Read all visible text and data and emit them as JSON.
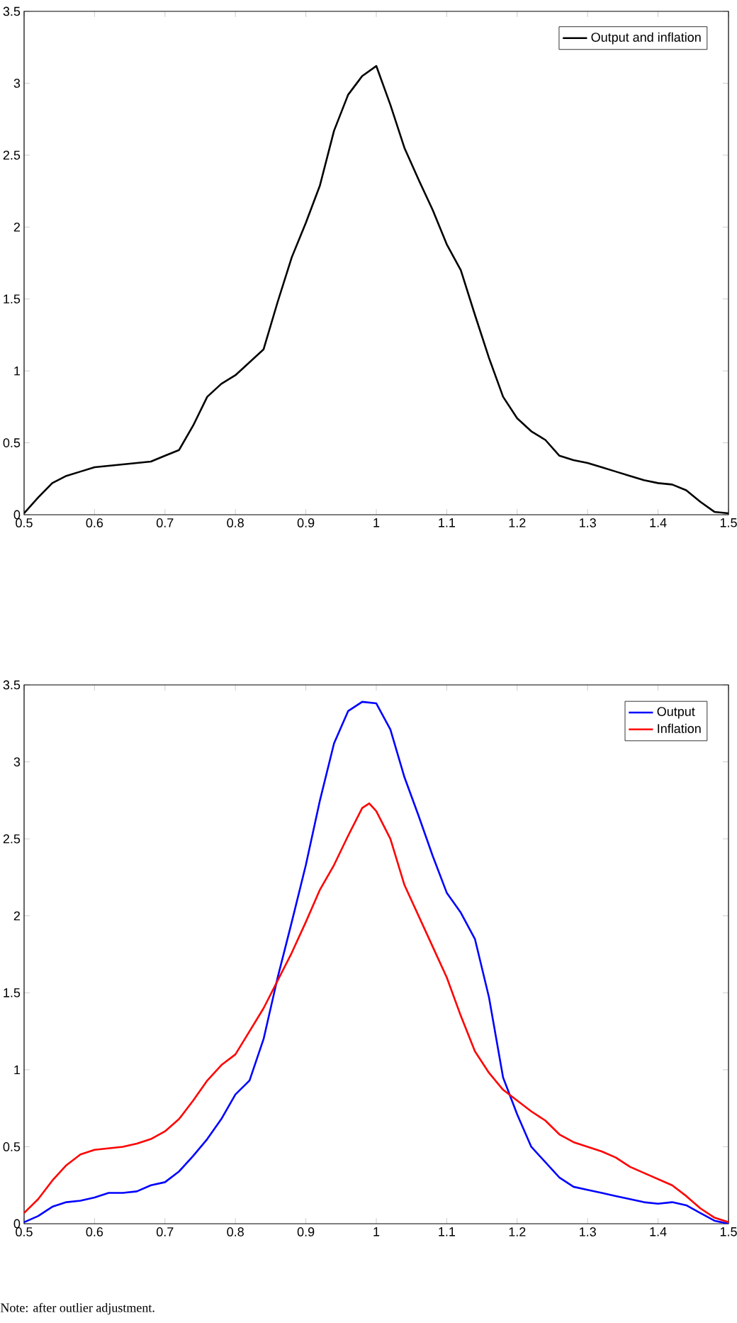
{
  "chart_data": [
    {
      "type": "line",
      "series": [
        {
          "name": "Output and inflation",
          "color": "#000000",
          "x": [
            0.5,
            0.52,
            0.54,
            0.56,
            0.58,
            0.6,
            0.62,
            0.64,
            0.66,
            0.68,
            0.7,
            0.72,
            0.74,
            0.76,
            0.78,
            0.8,
            0.82,
            0.84,
            0.86,
            0.88,
            0.9,
            0.92,
            0.94,
            0.96,
            0.98,
            1.0,
            1.02,
            1.04,
            1.06,
            1.08,
            1.1,
            1.12,
            1.14,
            1.16,
            1.18,
            1.2,
            1.22,
            1.24,
            1.26,
            1.28,
            1.3,
            1.32,
            1.34,
            1.36,
            1.38,
            1.4,
            1.42,
            1.44,
            1.46,
            1.48,
            1.5
          ],
          "values": [
            0.01,
            0.12,
            0.22,
            0.27,
            0.3,
            0.33,
            0.34,
            0.35,
            0.36,
            0.37,
            0.41,
            0.45,
            0.62,
            0.82,
            0.91,
            0.97,
            1.06,
            1.15,
            1.48,
            1.79,
            2.03,
            2.29,
            2.67,
            2.92,
            3.05,
            3.12,
            2.85,
            2.55,
            2.33,
            2.12,
            1.88,
            1.7,
            1.39,
            1.09,
            0.82,
            0.67,
            0.58,
            0.52,
            0.41,
            0.38,
            0.36,
            0.33,
            0.3,
            0.27,
            0.24,
            0.22,
            0.21,
            0.17,
            0.09,
            0.02,
            0.01
          ]
        }
      ],
      "xlim": [
        0.5,
        1.5
      ],
      "ylim": [
        0,
        3.5
      ],
      "xticks": [
        0.5,
        0.6,
        0.7,
        0.8,
        0.9,
        1,
        1.1,
        1.2,
        1.3,
        1.4,
        1.5
      ],
      "yticks": [
        0,
        0.5,
        1,
        1.5,
        2,
        2.5,
        3,
        3.5
      ],
      "legend": "top right",
      "marker": "none",
      "line_style": "solid"
    },
    {
      "type": "line",
      "series": [
        {
          "name": "Output",
          "color": "#0000ff",
          "x": [
            0.5,
            0.52,
            0.54,
            0.56,
            0.58,
            0.6,
            0.62,
            0.64,
            0.66,
            0.68,
            0.7,
            0.72,
            0.74,
            0.76,
            0.78,
            0.8,
            0.82,
            0.84,
            0.86,
            0.88,
            0.9,
            0.92,
            0.94,
            0.96,
            0.98,
            1.0,
            1.02,
            1.04,
            1.06,
            1.08,
            1.1,
            1.12,
            1.14,
            1.16,
            1.18,
            1.2,
            1.22,
            1.24,
            1.26,
            1.28,
            1.3,
            1.32,
            1.34,
            1.36,
            1.38,
            1.4,
            1.42,
            1.44,
            1.46,
            1.48,
            1.5
          ],
          "values": [
            0.01,
            0.05,
            0.11,
            0.14,
            0.15,
            0.17,
            0.2,
            0.2,
            0.21,
            0.25,
            0.27,
            0.34,
            0.44,
            0.55,
            0.68,
            0.84,
            0.93,
            1.2,
            1.6,
            1.96,
            2.33,
            2.75,
            3.12,
            3.33,
            3.39,
            3.38,
            3.21,
            2.9,
            2.65,
            2.39,
            2.15,
            2.02,
            1.85,
            1.47,
            0.95,
            0.71,
            0.5,
            0.4,
            0.3,
            0.24,
            0.22,
            0.2,
            0.18,
            0.16,
            0.14,
            0.13,
            0.14,
            0.12,
            0.07,
            0.02,
            0.0
          ]
        },
        {
          "name": "Inflation",
          "color": "#ff0000",
          "x": [
            0.5,
            0.52,
            0.54,
            0.56,
            0.58,
            0.6,
            0.62,
            0.64,
            0.66,
            0.68,
            0.7,
            0.72,
            0.74,
            0.76,
            0.78,
            0.8,
            0.82,
            0.84,
            0.86,
            0.88,
            0.9,
            0.92,
            0.94,
            0.96,
            0.98,
            0.99,
            1.0,
            1.02,
            1.04,
            1.06,
            1.08,
            1.1,
            1.12,
            1.14,
            1.16,
            1.18,
            1.2,
            1.22,
            1.24,
            1.26,
            1.28,
            1.3,
            1.32,
            1.34,
            1.36,
            1.38,
            1.4,
            1.42,
            1.44,
            1.46,
            1.48,
            1.5
          ],
          "values": [
            0.07,
            0.16,
            0.28,
            0.38,
            0.45,
            0.48,
            0.49,
            0.5,
            0.52,
            0.55,
            0.6,
            0.68,
            0.8,
            0.93,
            1.03,
            1.1,
            1.25,
            1.4,
            1.58,
            1.76,
            1.96,
            2.17,
            2.33,
            2.52,
            2.7,
            2.73,
            2.68,
            2.5,
            2.2,
            2.0,
            1.8,
            1.6,
            1.35,
            1.12,
            0.98,
            0.87,
            0.8,
            0.73,
            0.67,
            0.58,
            0.53,
            0.5,
            0.47,
            0.43,
            0.37,
            0.33,
            0.29,
            0.25,
            0.18,
            0.1,
            0.04,
            0.01
          ]
        }
      ],
      "xlim": [
        0.5,
        1.5
      ],
      "ylim": [
        0,
        3.5
      ],
      "xticks": [
        0.5,
        0.6,
        0.7,
        0.8,
        0.9,
        1,
        1.1,
        1.2,
        1.3,
        1.4,
        1.5
      ],
      "yticks": [
        0,
        0.5,
        1,
        1.5,
        2,
        2.5,
        3,
        3.5
      ],
      "legend": "top right",
      "marker": "none",
      "line_style": "solid",
      "annotations": [
        "Note: after outlier adjustment."
      ]
    }
  ]
}
